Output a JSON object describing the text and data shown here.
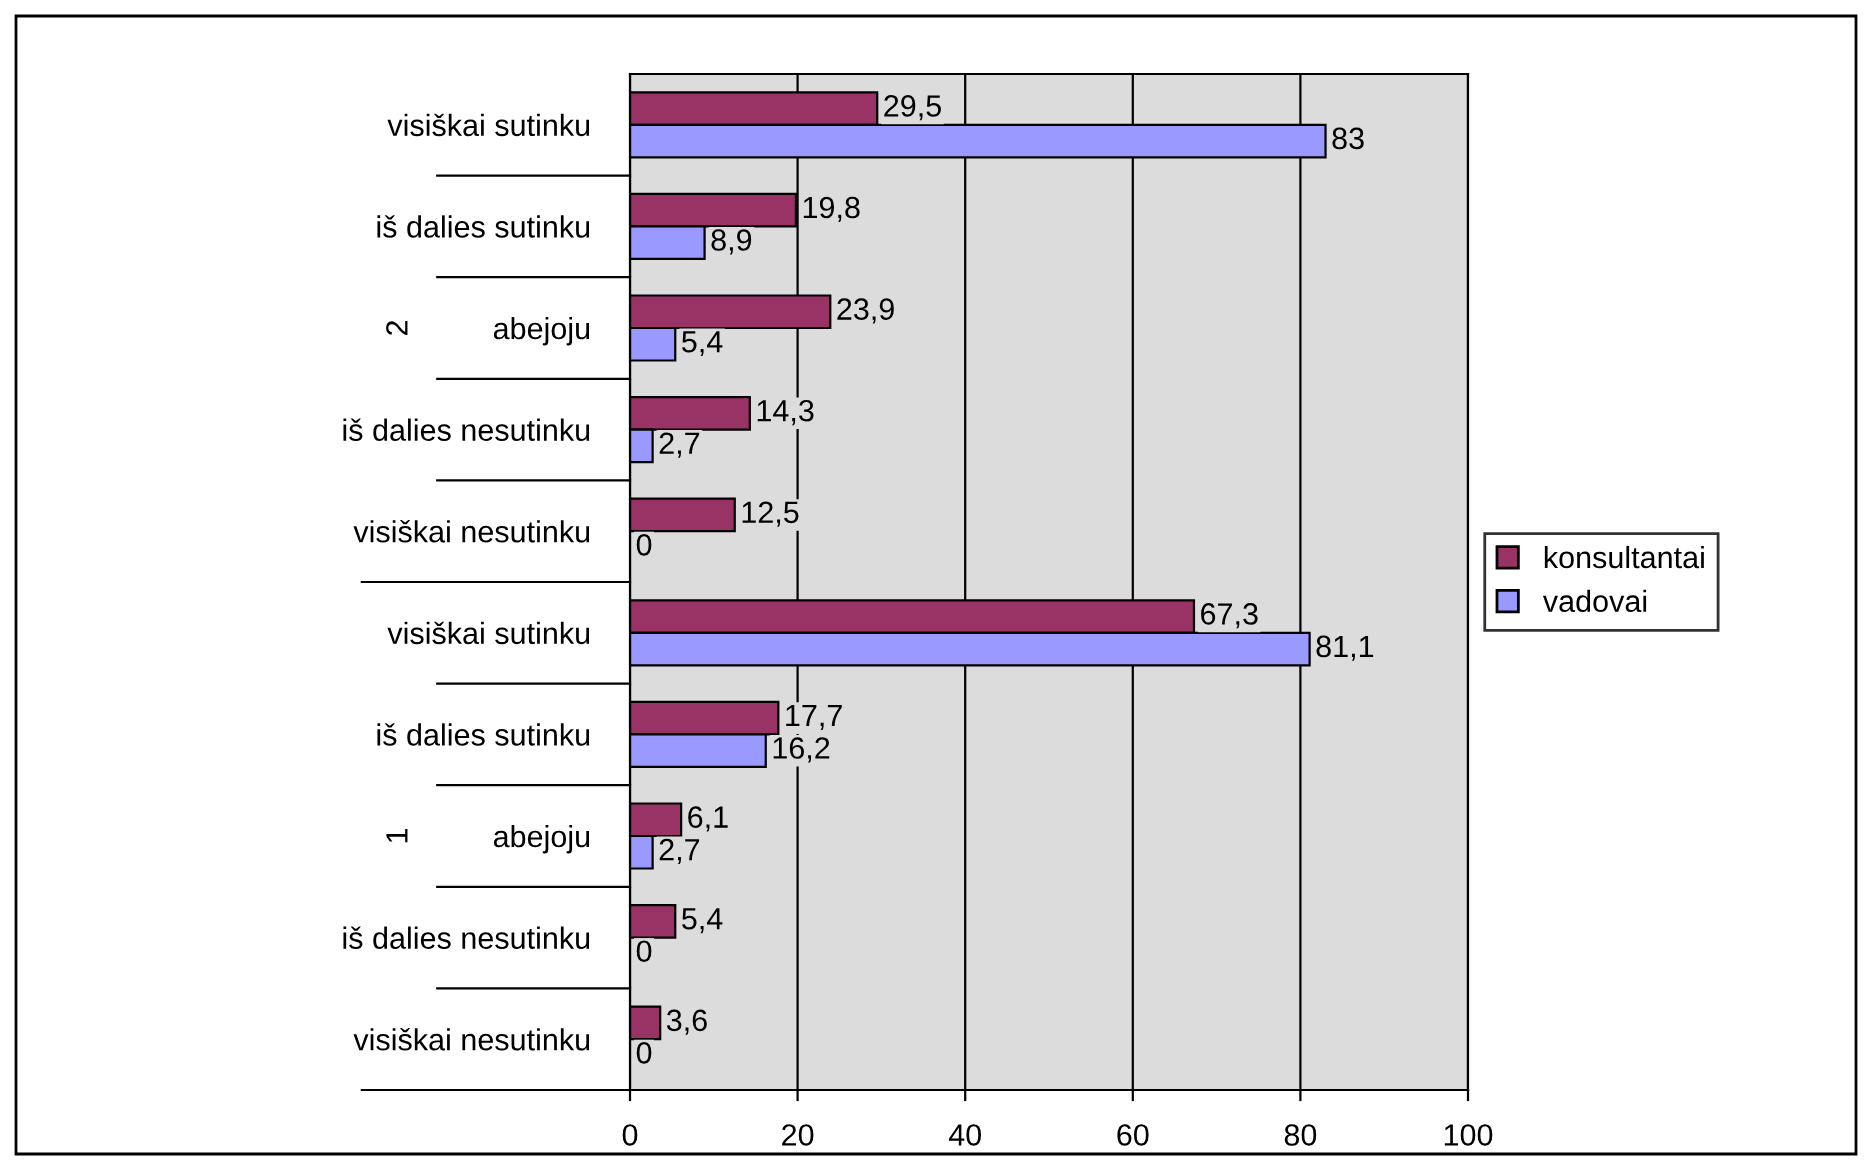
{
  "chart_data": {
    "type": "bar",
    "orientation": "horizontal",
    "categories": [
      "visiškai sutinku",
      "iš dalies sutinku",
      "abejoju",
      "iš dalies nesutinku",
      "visiškai nesutinku",
      "visiškai sutinku",
      "iš dalies sutinku",
      "abejoju",
      "iš dalies nesutinku",
      "visiškai nesutinku"
    ],
    "series": [
      {
        "name": "konsultantai",
        "color": "#993366",
        "values": [
          29.5,
          19.8,
          23.9,
          14.3,
          12.5,
          67.3,
          17.7,
          6.1,
          5.4,
          3.6
        ],
        "value_labels": [
          "29,5",
          "19,8",
          "23,9",
          "14,3",
          "12,5",
          "67,3",
          "17,7",
          "6,1",
          "5,4",
          "3,6"
        ]
      },
      {
        "name": "vadovai",
        "color": "#9999ff",
        "values": [
          83,
          8.9,
          5.4,
          2.7,
          0,
          81.1,
          16.2,
          2.7,
          0,
          0
        ],
        "value_labels": [
          "83",
          "8,9",
          "5,4",
          "2,7",
          "0",
          "81,1",
          "16,2",
          "2,7",
          "0",
          "0"
        ]
      }
    ],
    "annotations": [
      "2",
      "1"
    ],
    "xlim": [
      0,
      100
    ],
    "xticks": [
      0,
      20,
      40,
      60,
      80,
      100
    ],
    "grid": "x",
    "legend": "right"
  }
}
